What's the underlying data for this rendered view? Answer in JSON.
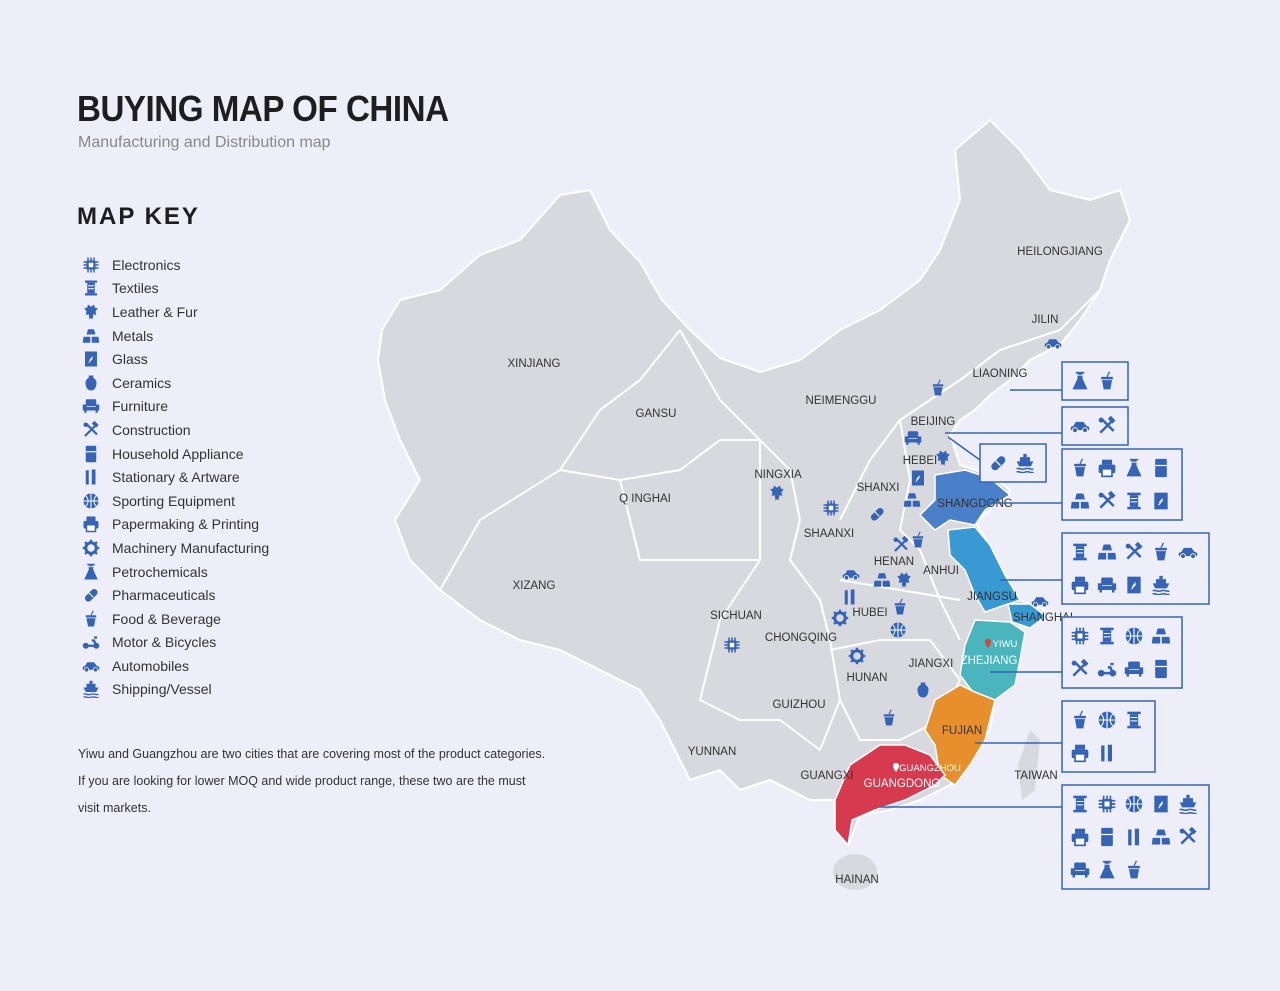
{
  "header": {
    "title": "BUYING MAP OF CHINA",
    "subtitle": "Manufacturing and Distribution map"
  },
  "map_key": {
    "title": "MAP KEY",
    "items": [
      {
        "icon": "electronics",
        "label": "Electronics"
      },
      {
        "icon": "textiles",
        "label": "Textiles"
      },
      {
        "icon": "leather",
        "label": "Leather & Fur"
      },
      {
        "icon": "metals",
        "label": "Metals"
      },
      {
        "icon": "glass",
        "label": "Glass"
      },
      {
        "icon": "ceramics",
        "label": "Ceramics"
      },
      {
        "icon": "furniture",
        "label": "Furniture"
      },
      {
        "icon": "construction",
        "label": "Construction"
      },
      {
        "icon": "appliance",
        "label": "Household Appliance"
      },
      {
        "icon": "stationary",
        "label": "Stationary & Artware"
      },
      {
        "icon": "sporting",
        "label": "Sporting Equipment"
      },
      {
        "icon": "printing",
        "label": "Papermaking & Printing"
      },
      {
        "icon": "machinery",
        "label": "Machinery Manufacturing"
      },
      {
        "icon": "petrochem",
        "label": "Petrochemicals"
      },
      {
        "icon": "pharma",
        "label": "Pharmaceuticals"
      },
      {
        "icon": "food",
        "label": "Food & Beverage"
      },
      {
        "icon": "motor",
        "label": "Motor & Bicycles"
      },
      {
        "icon": "automobile",
        "label": "Automobiles"
      },
      {
        "icon": "shipping",
        "label": "Shipping/Vessel"
      }
    ]
  },
  "note": "Yiwu and Guangzhou are two cities that are covering most of the product categories. If you are looking for lower MOQ and wide product range, these two are the must visit markets.",
  "map": {
    "labels": [
      "HEILONGJIANG",
      "JILIN",
      "LIAONING",
      "NEIMENGGU",
      "BEIJING",
      "HEBEI",
      "SHANXI",
      "SHANGDONG",
      "XINJIANG",
      "GANSU",
      "NINGXIA",
      "Q INGHAI",
      "SHAANXI",
      "HENAN",
      "ANHUI",
      "JIANGSU",
      "SHANGHAI",
      "XIZANG",
      "SICHUAN",
      "HUBEI",
      "CHONGQING",
      "YIWU",
      "ZHEJIANG",
      "JIANGXI",
      "HUNAN",
      "GUIZHOU",
      "FUJIAN",
      "YUNNAN",
      "GUANGZHOU",
      "GUANGXI",
      "GUANGDONG",
      "TAIWAN",
      "HAINAN"
    ],
    "colors": {
      "land": "#d8d9df",
      "border": "#ffffff",
      "icon": "#3563b5",
      "shangdong": "#4a7fca",
      "jiangsu": "#3899d3",
      "shanghai": "#3899d3",
      "zhejiang": "#4ab5bd",
      "fujian": "#e78f2c",
      "guangdong": "#d53a4f",
      "city_pin": "#d9433c"
    },
    "callouts": [
      {
        "province": "LIAONING",
        "icons": [
          "petrochem",
          "food"
        ]
      },
      {
        "province": "BEIJING",
        "icons": [
          "automobile",
          "construction"
        ]
      },
      {
        "province": "HEBEI",
        "icons": [
          "pharma",
          "shipping"
        ]
      },
      {
        "province": "SHANGDONG",
        "icons": [
          "food",
          "printing",
          "petrochem",
          "appliance",
          "metals",
          "construction",
          "textiles",
          "glass"
        ]
      },
      {
        "province": "JIANGSU",
        "icons": [
          "textiles",
          "metals",
          "construction",
          "food",
          "automobile",
          "printing",
          "furniture",
          "glass",
          "shipping"
        ]
      },
      {
        "province": "ZHEJIANG",
        "icons": [
          "electronics",
          "textiles",
          "sporting",
          "metals",
          "construction",
          "motor",
          "furniture",
          "appliance"
        ]
      },
      {
        "province": "FUJIAN",
        "icons": [
          "food",
          "sporting",
          "textiles",
          "printing",
          "stationary"
        ]
      },
      {
        "province": "GUANGDONG",
        "icons": [
          "textiles",
          "electronics",
          "sporting",
          "glass",
          "shipping",
          "printing",
          "appliance",
          "stationary",
          "metals",
          "construction",
          "furniture",
          "petrochem",
          "food"
        ]
      }
    ],
    "map_icons": [
      "food",
      "furniture",
      "leather",
      "glass",
      "metals",
      "leather",
      "electronics",
      "pharma",
      "construction",
      "food",
      "automobile",
      "metals",
      "leather",
      "stationary",
      "food",
      "machinery",
      "sporting",
      "electronics",
      "machinery",
      "ceramics",
      "food",
      "automobile",
      "automobile"
    ]
  }
}
